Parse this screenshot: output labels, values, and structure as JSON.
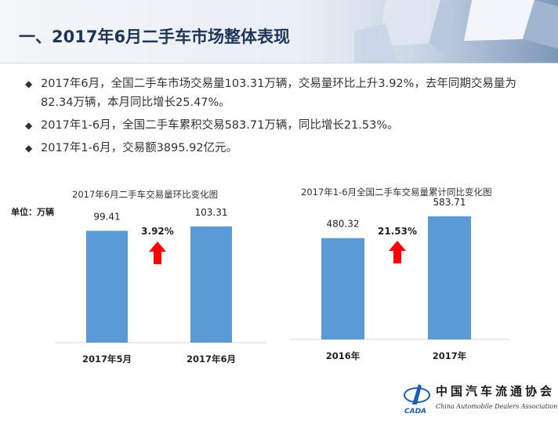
{
  "title": "一、2017年6月二手车市场整体表现",
  "bullets": [
    "2017年6月，全国二手车市场交易量103.31万辆，交易量环比上升3.92%，去年同期交易量为82.34万辆，本月同比增长25.47%。",
    "2017年1-6月，全国二手车累积交易583.71万辆，同比增长21.53%。",
    "2017年1-6月，交易额3895.92亿元。"
  ],
  "unit_label": "单位：万辆",
  "chart_data": [
    {
      "type": "bar",
      "title": "2017年6月二手车交易量环比变化图",
      "categories": [
        "2017年5月",
        "2017年6月"
      ],
      "values": [
        99.41,
        103.31
      ],
      "change_label": "3.92%",
      "ylim": [
        0,
        115
      ],
      "grid": false
    },
    {
      "type": "bar",
      "title": "2017年1-6月全国二手车交易量累计同比变化图",
      "categories": [
        "2016年",
        "2017年"
      ],
      "values": [
        480.32,
        583.71
      ],
      "change_label": "21.53%",
      "ylim": [
        0,
        650
      ],
      "grid": false
    }
  ],
  "colors": {
    "bar": "#5b9bd5",
    "arrow": "#ff0000",
    "title": "#1f3556"
  },
  "logo": {
    "name": "中国汽车流通协会",
    "english": "China Automobile Dealers Association",
    "mark": "CADA"
  }
}
